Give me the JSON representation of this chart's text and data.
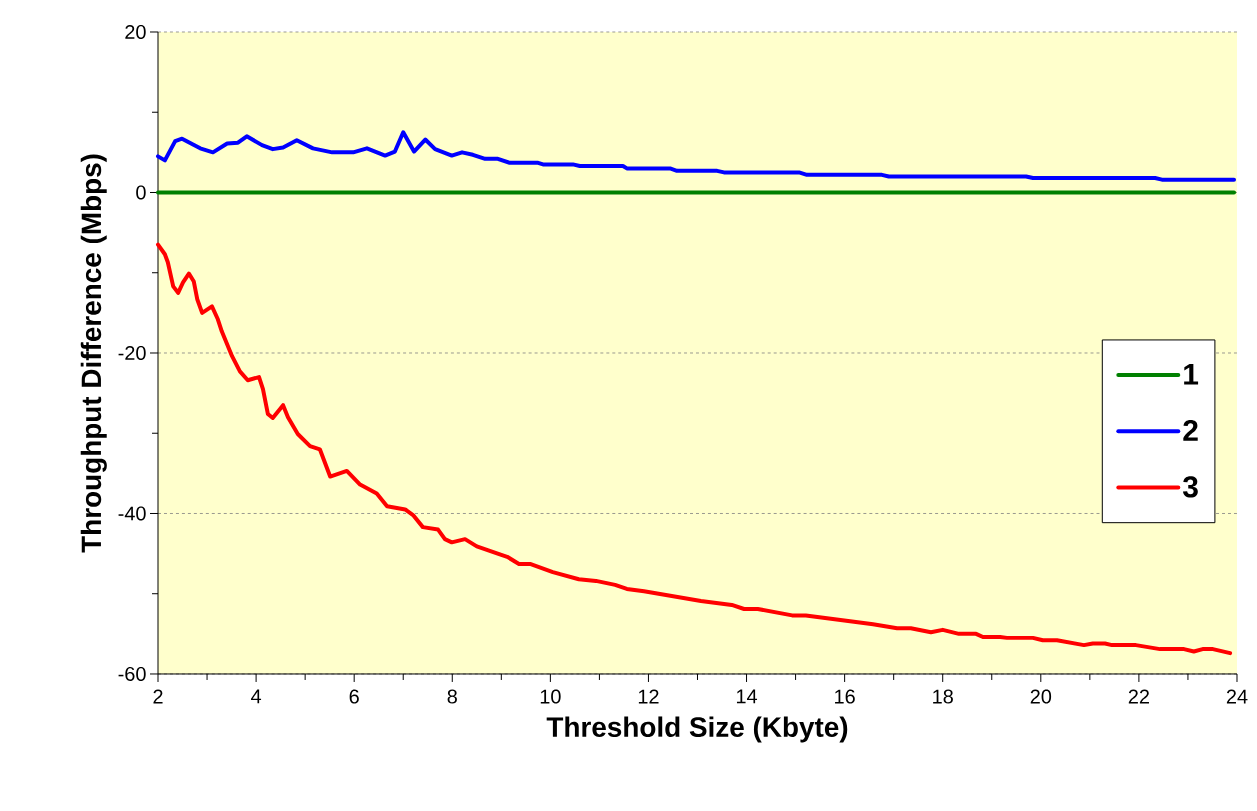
{
  "chart_data": {
    "type": "line",
    "xlabel": "Threshold Size (Kbyte)",
    "ylabel": "Throughput Difference (Mbps)",
    "xlim": [
      2,
      24
    ],
    "ylim": [
      -60,
      20
    ],
    "xticks": [
      2,
      {
        "value": 3,
        "label": null
      },
      4,
      {
        "value": 5,
        "label": null
      },
      6,
      {
        "value": 7,
        "label": null
      },
      8,
      {
        "value": 9,
        "label": null
      },
      10,
      {
        "value": 11,
        "label": null
      },
      12,
      {
        "value": 13,
        "label": null
      },
      14,
      {
        "value": 15,
        "label": null
      },
      16,
      {
        "value": 17,
        "label": null
      },
      18,
      {
        "value": 19,
        "label": null
      },
      20,
      {
        "value": 21,
        "label": null
      },
      22,
      {
        "value": 23,
        "label": null
      },
      24
    ],
    "yticks": [
      -60,
      {
        "value": -50,
        "label": null
      },
      -40,
      {
        "value": -30,
        "label": null
      },
      -20,
      {
        "value": -10,
        "label": null
      },
      0,
      {
        "value": 10,
        "label": null
      },
      20
    ],
    "grid": "y",
    "legend": "right",
    "marker": "none",
    "line_style": "solid",
    "series": [
      {
        "name": "1",
        "color": "#008000",
        "x": [
          2,
          23.94
        ],
        "values": [
          0,
          0
        ]
      },
      {
        "name": "2",
        "color": "#0000ff",
        "x": [
          2.0,
          2.14,
          2.35,
          2.49,
          2.86,
          3.12,
          3.41,
          3.63,
          3.81,
          4.12,
          4.34,
          4.55,
          4.83,
          5.16,
          5.55,
          5.98,
          6.26,
          6.63,
          6.83,
          7.0,
          7.22,
          7.45,
          7.65,
          7.99,
          8.2,
          8.42,
          8.67,
          8.93,
          9.17,
          9.75,
          9.85,
          10.46,
          10.6,
          11.48,
          11.56,
          12.44,
          12.58,
          13.4,
          13.54,
          15.07,
          15.23,
          16.76,
          16.9,
          19.7,
          19.84,
          22.33,
          22.47,
          23.94
        ],
        "values": [
          4.5,
          4.0,
          6.4,
          6.7,
          5.5,
          5.0,
          6.1,
          6.2,
          7.0,
          5.9,
          5.4,
          5.6,
          6.5,
          5.5,
          5.0,
          5.0,
          5.5,
          4.6,
          5.1,
          7.5,
          5.1,
          6.6,
          5.4,
          4.6,
          5.0,
          4.7,
          4.2,
          4.2,
          3.7,
          3.7,
          3.5,
          3.5,
          3.3,
          3.3,
          3.0,
          3.0,
          2.7,
          2.7,
          2.5,
          2.5,
          2.2,
          2.2,
          2.0,
          2.0,
          1.8,
          1.8,
          1.6,
          1.6
        ]
      },
      {
        "name": "3",
        "color": "#ff0000",
        "x": [
          2.0,
          2.14,
          2.2,
          2.31,
          2.41,
          2.51,
          2.63,
          2.73,
          2.8,
          2.9,
          3.1,
          3.22,
          3.3,
          3.51,
          3.67,
          3.83,
          4.06,
          4.14,
          4.24,
          4.34,
          4.55,
          4.65,
          4.85,
          5.1,
          5.3,
          5.51,
          5.85,
          6.12,
          6.46,
          6.67,
          7.04,
          7.2,
          7.4,
          7.71,
          7.85,
          7.99,
          8.26,
          8.5,
          8.97,
          9.12,
          9.36,
          9.6,
          10.05,
          10.58,
          10.93,
          11.32,
          11.56,
          11.91,
          13.07,
          13.7,
          13.95,
          14.23,
          14.93,
          15.21,
          16.19,
          16.58,
          17.07,
          17.35,
          17.76,
          18.0,
          18.33,
          18.68,
          18.82,
          19.17,
          19.31,
          19.84,
          20.04,
          20.33,
          20.88,
          21.06,
          21.31,
          21.45,
          21.94,
          22.43,
          22.92,
          23.12,
          23.3,
          23.51,
          23.86
        ],
        "values": [
          -6.5,
          -7.7,
          -8.7,
          -11.7,
          -12.5,
          -11.2,
          -10.1,
          -11.1,
          -13.3,
          -15.0,
          -14.2,
          -15.8,
          -17.3,
          -20.4,
          -22.3,
          -23.4,
          -23.0,
          -24.5,
          -27.6,
          -28.1,
          -26.5,
          -28.0,
          -30.1,
          -31.6,
          -32.0,
          -35.4,
          -34.7,
          -36.4,
          -37.5,
          -39.1,
          -39.5,
          -40.2,
          -41.7,
          -42.0,
          -43.2,
          -43.6,
          -43.2,
          -44.1,
          -45.1,
          -45.4,
          -46.3,
          -46.3,
          -47.3,
          -48.2,
          -48.4,
          -48.9,
          -49.4,
          -49.7,
          -50.9,
          -51.4,
          -51.9,
          -51.9,
          -52.7,
          -52.7,
          -53.5,
          -53.8,
          -54.3,
          -54.3,
          -54.8,
          -54.5,
          -55.0,
          -55.0,
          -55.4,
          -55.4,
          -55.5,
          -55.5,
          -55.8,
          -55.8,
          -56.4,
          -56.2,
          -56.2,
          -56.4,
          -56.4,
          -56.9,
          -56.9,
          -57.2,
          -56.9,
          -56.9,
          -57.4
        ]
      }
    ]
  }
}
